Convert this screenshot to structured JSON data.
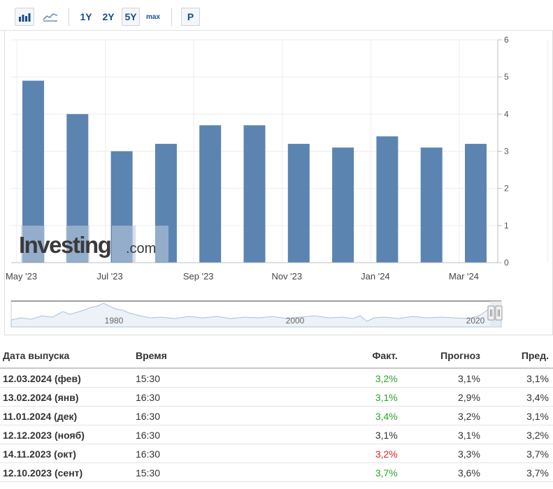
{
  "toolbar": {
    "range_buttons": [
      "1Y",
      "2Y",
      "5Y",
      "max"
    ],
    "active_range": "5Y",
    "p_button": "P",
    "bar_chart_icon": "bar-chart-icon",
    "line_chart_icon": "line-chart-icon"
  },
  "chart_data": {
    "type": "bar",
    "categories": [
      "May '23",
      "Jun '23",
      "Jul '23",
      "Aug '23",
      "Sep '23",
      "Oct '23",
      "Nov '23",
      "Dec '23",
      "Jan '24",
      "Feb '24",
      "Mar '24"
    ],
    "x_tick_labels": [
      "May '23",
      "Jul '23",
      "Sep '23",
      "Nov '23",
      "Jan '24",
      "Mar '24"
    ],
    "values": [
      4.9,
      4.0,
      3.0,
      3.2,
      3.7,
      3.7,
      3.2,
      3.1,
      3.4,
      3.1,
      3.2
    ],
    "y_ticks": [
      "0",
      "1",
      "2",
      "3",
      "4",
      "5",
      "6"
    ],
    "ylim": [
      0,
      6
    ],
    "yaxis_side": "right",
    "grid": true,
    "bar_color": "#5b84b1",
    "watermark": "Investing.com"
  },
  "navigator": {
    "labels": [
      "1980",
      "2000",
      "2020"
    ]
  },
  "table": {
    "headers": {
      "date": "Дата выпуска",
      "time": "Время",
      "actual": "Факт.",
      "forecast": "Прогноз",
      "previous": "Пред."
    },
    "rows": [
      {
        "date": "12.03.2024 (фев)",
        "time": "15:30",
        "actual": "3,2%",
        "actual_color": "green",
        "forecast": "3,1%",
        "previous": "3,1%"
      },
      {
        "date": "13.02.2024 (янв)",
        "time": "16:30",
        "actual": "3,1%",
        "actual_color": "green",
        "forecast": "2,9%",
        "previous": "3,4%"
      },
      {
        "date": "11.01.2024 (дек)",
        "time": "16:30",
        "actual": "3,4%",
        "actual_color": "green",
        "forecast": "3,2%",
        "previous": "3,1%"
      },
      {
        "date": "12.12.2023 (нояб)",
        "time": "16:30",
        "actual": "3,1%",
        "actual_color": "neutral",
        "forecast": "3,1%",
        "previous": "3,2%"
      },
      {
        "date": "14.11.2023 (окт)",
        "time": "16:30",
        "actual": "3,2%",
        "actual_color": "red",
        "forecast": "3,3%",
        "previous": "3,7%"
      },
      {
        "date": "12.10.2023 (сент)",
        "time": "15:30",
        "actual": "3,7%",
        "actual_color": "green",
        "forecast": "3,6%",
        "previous": "3,7%"
      }
    ]
  }
}
